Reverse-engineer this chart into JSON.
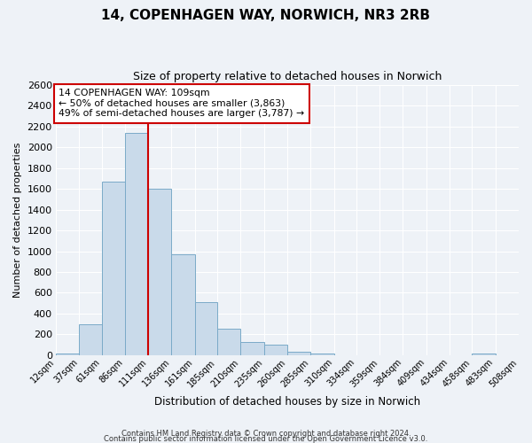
{
  "title": "14, COPENHAGEN WAY, NORWICH, NR3 2RB",
  "subtitle": "Size of property relative to detached houses in Norwich",
  "xlabel": "Distribution of detached houses by size in Norwich",
  "ylabel": "Number of detached properties",
  "bar_color": "#c9daea",
  "bar_edge_color": "#7aaac8",
  "background_color": "#eef2f7",
  "grid_color": "#ffffff",
  "bin_edges": [
    12,
    37,
    61,
    86,
    111,
    136,
    161,
    185,
    210,
    235,
    260,
    285,
    310,
    334,
    359,
    384,
    409,
    434,
    458,
    483,
    508
  ],
  "bin_labels": [
    "12sqm",
    "37sqm",
    "61sqm",
    "86sqm",
    "111sqm",
    "136sqm",
    "161sqm",
    "185sqm",
    "210sqm",
    "235sqm",
    "260sqm",
    "285sqm",
    "310sqm",
    "334sqm",
    "359sqm",
    "384sqm",
    "409sqm",
    "434sqm",
    "458sqm",
    "483sqm",
    "508sqm"
  ],
  "counts": [
    20,
    300,
    1670,
    2140,
    1600,
    970,
    510,
    255,
    125,
    100,
    38,
    15,
    0,
    0,
    0,
    0,
    0,
    0,
    15,
    0
  ],
  "vline_x": 111,
  "vline_color": "#cc0000",
  "annotation_text": "14 COPENHAGEN WAY: 109sqm\n← 50% of detached houses are smaller (3,863)\n49% of semi-detached houses are larger (3,787) →",
  "annotation_box_color": "#ffffff",
  "annotation_box_edge_color": "#cc0000",
  "ylim": [
    0,
    2600
  ],
  "yticks": [
    0,
    200,
    400,
    600,
    800,
    1000,
    1200,
    1400,
    1600,
    1800,
    2000,
    2200,
    2400,
    2600
  ],
  "footer_line1": "Contains HM Land Registry data © Crown copyright and database right 2024.",
  "footer_line2": "Contains public sector information licensed under the Open Government Licence v3.0."
}
